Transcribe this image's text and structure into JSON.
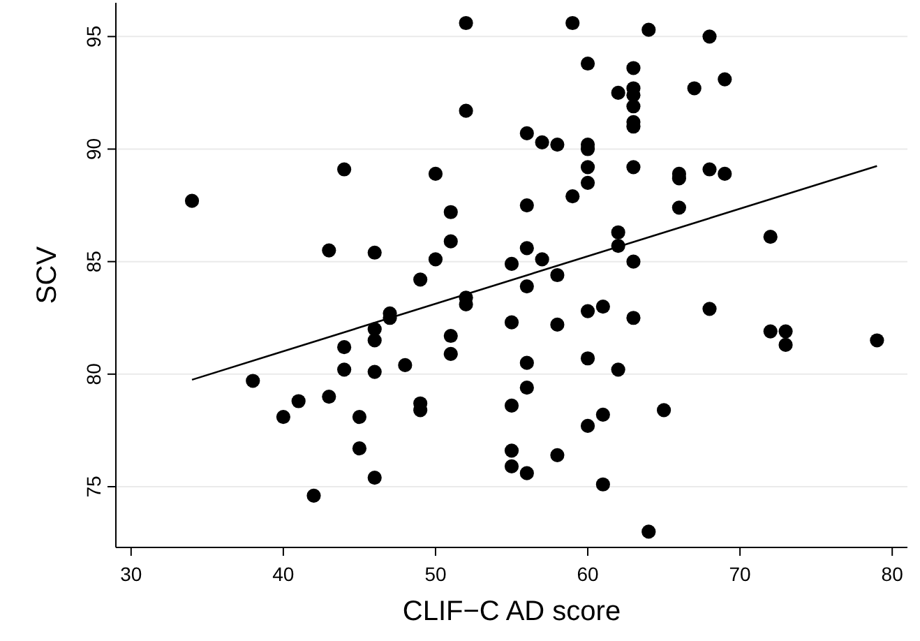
{
  "chart_data": {
    "type": "scatter",
    "xlabel": "CLIF−C AD score",
    "ylabel": "SCV",
    "xlim": [
      29,
      81
    ],
    "ylim": [
      72.3,
      96.5
    ],
    "xticks": [
      30,
      40,
      50,
      60,
      70,
      80
    ],
    "yticks": [
      75,
      80,
      85,
      90,
      95
    ],
    "grid": "y",
    "legend": false,
    "marker": "circle",
    "series": [
      {
        "color": "#000000",
        "x": [
          34,
          38,
          40,
          41,
          42,
          43,
          43,
          44,
          44,
          44,
          45,
          45,
          46,
          46,
          46,
          46,
          46,
          47,
          47,
          48,
          49,
          49,
          49,
          50,
          50,
          51,
          51,
          51,
          51,
          52,
          52,
          52,
          52,
          55,
          55,
          55,
          55,
          55,
          56,
          56,
          56,
          56,
          56,
          56,
          56,
          57,
          57,
          58,
          58,
          58,
          58,
          59,
          59,
          60,
          60,
          60,
          60,
          60,
          60,
          60,
          60,
          61,
          61,
          61,
          62,
          62,
          62,
          62,
          63,
          63,
          63,
          63,
          63,
          63,
          63,
          63,
          63,
          64,
          64,
          65,
          66,
          66,
          66,
          67,
          68,
          68,
          68,
          69,
          69,
          72,
          72,
          73,
          73,
          79
        ],
        "values": [
          87.7,
          79.7,
          78.1,
          78.8,
          74.6,
          85.5,
          79.0,
          89.1,
          81.2,
          80.2,
          78.1,
          76.7,
          85.4,
          82.0,
          81.5,
          80.1,
          75.4,
          82.7,
          82.5,
          80.4,
          84.2,
          78.7,
          78.4,
          88.9,
          85.1,
          87.2,
          85.9,
          81.7,
          80.9,
          95.6,
          91.7,
          83.4,
          83.1,
          84.9,
          82.3,
          78.6,
          76.6,
          75.9,
          90.7,
          87.5,
          85.6,
          83.9,
          80.5,
          79.4,
          75.6,
          90.3,
          85.1,
          90.2,
          84.4,
          82.2,
          76.4,
          95.6,
          87.9,
          93.8,
          90.2,
          90.0,
          89.2,
          88.5,
          82.8,
          80.7,
          77.7,
          83.0,
          78.2,
          75.1,
          92.5,
          86.3,
          85.7,
          80.2,
          93.6,
          92.7,
          92.4,
          91.9,
          91.2,
          91.0,
          89.2,
          85.0,
          82.5,
          95.3,
          73.0,
          78.4,
          88.9,
          88.7,
          87.4,
          92.7,
          95.0,
          89.1,
          82.9,
          93.1,
          88.9,
          86.1,
          81.9,
          81.9,
          81.3,
          81.5
        ]
      },
      {
        "type": "line",
        "marker": "none",
        "color": "#000000",
        "x": [
          34,
          79
        ],
        "values": [
          79.75,
          89.25
        ]
      }
    ]
  }
}
